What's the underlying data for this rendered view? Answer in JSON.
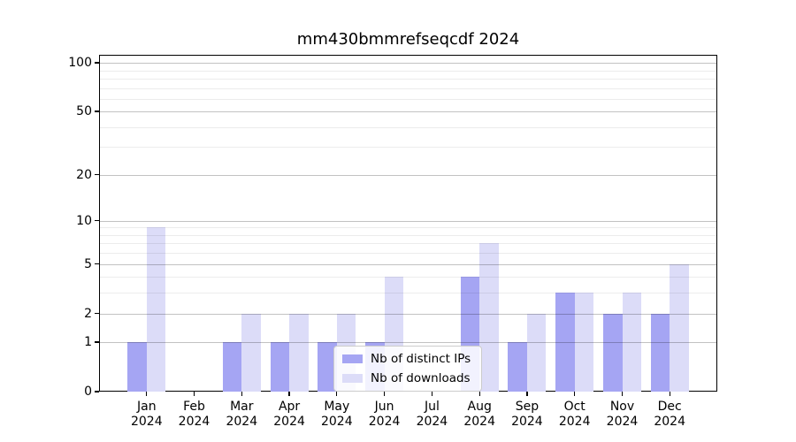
{
  "title": "mm430bmmrefseqcdf 2024",
  "legend": {
    "items": [
      {
        "label": "Nb of distinct IPs",
        "color": "#a5a5f3"
      },
      {
        "label": "Nb of downloads",
        "color": "#dcdcf8"
      }
    ]
  },
  "axes": {
    "months": [
      "Jan",
      "Feb",
      "Mar",
      "Apr",
      "May",
      "Jun",
      "Jul",
      "Aug",
      "Sep",
      "Oct",
      "Nov",
      "Dec"
    ],
    "year": "2024",
    "yticks": [
      0,
      1,
      2,
      5,
      10,
      20,
      50,
      100
    ],
    "yminor": [
      3,
      4,
      6,
      7,
      8,
      9,
      30,
      40,
      60,
      70,
      80,
      90
    ]
  },
  "chart_data": {
    "type": "bar",
    "title": "mm430bmmrefseqcdf 2024",
    "categories": [
      "Jan 2024",
      "Feb 2024",
      "Mar 2024",
      "Apr 2024",
      "May 2024",
      "Jun 2024",
      "Jul 2024",
      "Aug 2024",
      "Sep 2024",
      "Oct 2024",
      "Nov 2024",
      "Dec 2024"
    ],
    "series": [
      {
        "name": "Nb of distinct IPs",
        "color": "#a5a5f3",
        "values": [
          1,
          0,
          1,
          1,
          1,
          1,
          0,
          4,
          1,
          3,
          2,
          2
        ]
      },
      {
        "name": "Nb of downloads",
        "color": "#dcdcf8",
        "values": [
          9,
          0,
          2,
          2,
          2,
          4,
          0,
          7,
          2,
          3,
          3,
          5
        ]
      }
    ],
    "yscale": "log1p",
    "yticks": [
      0,
      1,
      2,
      5,
      10,
      20,
      50,
      100
    ],
    "ylim": [
      0,
      112
    ],
    "xlabel": "",
    "ylabel": "",
    "grid": true,
    "legend_position": "lower center"
  }
}
